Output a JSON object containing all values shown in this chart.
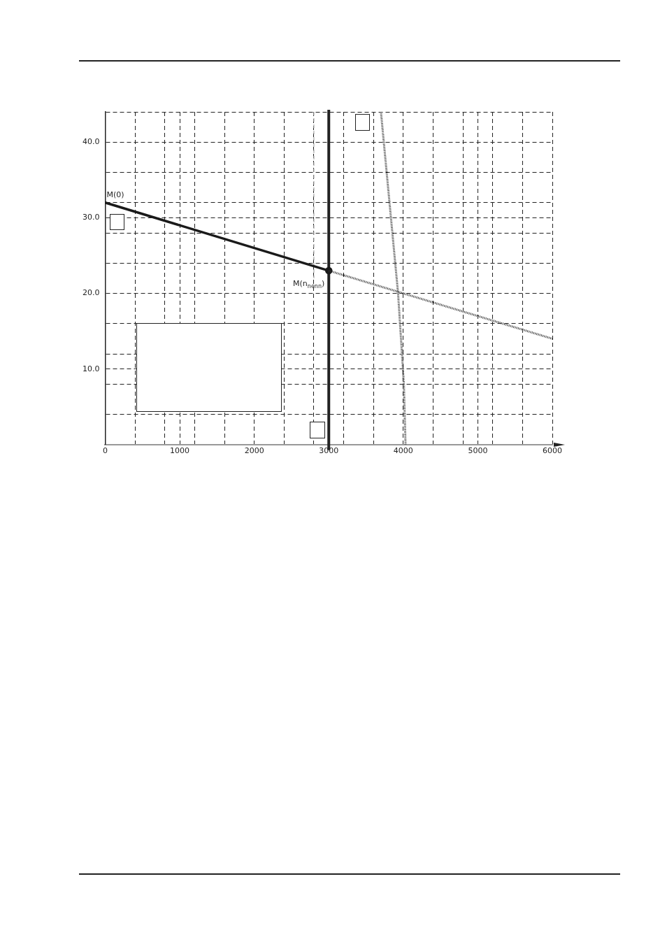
{
  "chart_data": {
    "type": "line",
    "xlim": [
      0,
      6000
    ],
    "ylim": [
      0,
      44
    ],
    "xticks": [
      0,
      {
        "value": 400,
        "label": null
      },
      {
        "value": 800,
        "label": null
      },
      1000,
      {
        "value": 1200,
        "label": null
      },
      {
        "value": 1600,
        "label": null
      },
      2000,
      {
        "value": 2400,
        "label": null
      },
      {
        "value": 2800,
        "label": null
      },
      3000,
      {
        "value": 3200,
        "label": null
      },
      {
        "value": 3600,
        "label": null
      },
      4000,
      {
        "value": 4400,
        "label": null
      },
      {
        "value": 4800,
        "label": null
      },
      5000,
      {
        "value": 5200,
        "label": null
      },
      {
        "value": 5600,
        "label": null
      },
      6000
    ],
    "yticks": [
      {
        "value": 0,
        "label": null
      },
      {
        "value": 4,
        "label": null
      },
      {
        "value": 8,
        "label": null
      },
      {
        "value": 10,
        "label": "10.0"
      },
      {
        "value": 12,
        "label": null
      },
      {
        "value": 16,
        "label": null
      },
      {
        "value": 20,
        "label": "20.0"
      },
      {
        "value": 24,
        "label": null
      },
      {
        "value": 28,
        "label": null
      },
      {
        "value": 30,
        "label": "30.0"
      },
      {
        "value": 32,
        "label": null
      },
      {
        "value": 36,
        "label": null
      },
      {
        "value": 40,
        "label": "40.0"
      },
      {
        "value": 44,
        "label": null
      }
    ],
    "grid": true,
    "legend": false,
    "marker": "none",
    "series": [
      {
        "color": "#1a1a1a",
        "x": [
          0,
          3000
        ],
        "values": [
          32,
          23
        ],
        "line_style": "solid"
      },
      {
        "color": "#333333",
        "x": [
          3000,
          6000
        ],
        "values": [
          23,
          14
        ],
        "line_style": "dotted"
      },
      {
        "color": "#333333",
        "x": [
          3700,
          3815,
          3930,
          4008,
          4030
        ],
        "values": [
          44,
          32,
          20,
          8,
          0
        ],
        "line_style": "dotted"
      },
      {
        "color": "#aaaaaa",
        "x": [
          2800,
          2800
        ],
        "values": [
          44,
          22
        ],
        "line_style": "dashed"
      },
      {
        "type": "scatter",
        "color": "#1a1a1a",
        "x": [
          3000
        ],
        "values": [
          23
        ],
        "marker": "circle"
      }
    ],
    "ref_lines": [
      {
        "axis": "x",
        "value": 3000,
        "color": "#222222"
      }
    ],
    "annotations": [
      {
        "text": "M(0)",
        "x": 0,
        "y": 32
      },
      {
        "text": "M(n$_{nenn}$)",
        "x": 3000,
        "y": 23
      }
    ]
  }
}
